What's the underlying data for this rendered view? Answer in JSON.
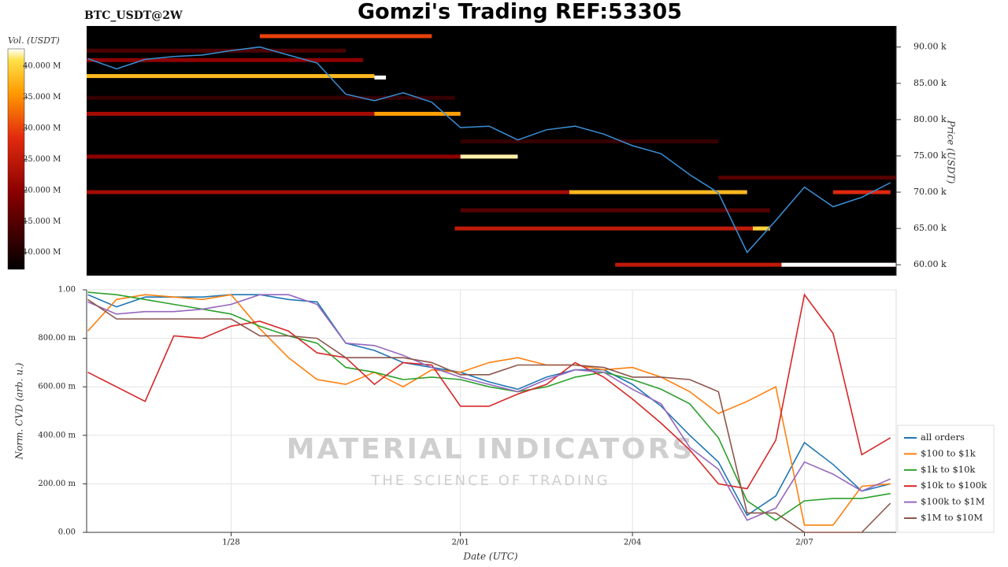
{
  "title": "Gomzi's Trading REF:53305",
  "chart_data": [
    {
      "type": "heatmap",
      "subtitle": "BTC_USDT@2W",
      "colorbar_label": "Vol. (USDT)",
      "clim": [
        7300000,
        42800000
      ],
      "cticks": [
        {
          "value": 10000000,
          "label": "10.000 M"
        },
        {
          "value": 15000000,
          "label": "15.000 M"
        },
        {
          "value": 20000000,
          "label": "20.000 M"
        },
        {
          "value": 25000000,
          "label": "25.000 M"
        },
        {
          "value": 30000000,
          "label": "30.000 M"
        },
        {
          "value": 35000000,
          "label": "35.000 M"
        },
        {
          "value": 40000000,
          "label": "40.000 M"
        }
      ],
      "ylabel": "Price (USDT)",
      "ylim": [
        58500,
        92900
      ],
      "yticks": [
        {
          "value": 60000,
          "label": "60.00 k"
        },
        {
          "value": 65000,
          "label": "65.00 k"
        },
        {
          "value": 70000,
          "label": "70.00 k"
        },
        {
          "value": 75000,
          "label": "75.00 k"
        },
        {
          "value": 80000,
          "label": "80.00 k"
        },
        {
          "value": 85000,
          "label": "85.00 k"
        },
        {
          "value": 90000,
          "label": "90.00 k"
        }
      ],
      "xlim": [
        25.48,
        39.6
      ],
      "bands": {
        "price": [
          89500,
          83000,
          77000,
          67500,
          72000,
          88200,
          86000,
          80800,
          80800,
          85800,
          91500,
          74900,
          74900,
          70000,
          70000,
          65000,
          65000,
          60000,
          60000,
          70000
        ],
        "start": [
          25.48,
          25.48,
          32,
          32,
          36.5,
          25.48,
          25.48,
          25.48,
          30.5,
          30.5,
          28.5,
          25.48,
          32,
          25.48,
          33.9,
          31.9,
          37.1,
          34.7,
          37.6,
          38.5
        ],
        "end": [
          30,
          31.9,
          36.5,
          37.4,
          39.6,
          30.3,
          30.5,
          32,
          32,
          30.7,
          31.5,
          33,
          33,
          37,
          37,
          37.4,
          37.4,
          39.6,
          39.6,
          39.5
        ],
        "volume": [
          14000000,
          12000000,
          12000000,
          15000000,
          15000000,
          20000000,
          38000000,
          22000000,
          36000000,
          48000000,
          30000000,
          20000000,
          42000000,
          22000000,
          38000000,
          25000000,
          40000000,
          25000000,
          50000000,
          28000000
        ]
      },
      "x": [
        25.5,
        26,
        26.5,
        27,
        27.5,
        28,
        28.5,
        29,
        29.5,
        30,
        30.5,
        31,
        31.5,
        32,
        32.5,
        33,
        33.5,
        34,
        34.5,
        35,
        35.5,
        36,
        36.5,
        37,
        37.5,
        38,
        38.5,
        39,
        39.5
      ],
      "series": [
        {
          "color": "#3a8fd6",
          "values": [
            88400,
            87000,
            88300,
            88700,
            88900,
            89500,
            90000,
            88900,
            87800,
            83500,
            82600,
            83700,
            82400,
            78900,
            79100,
            77200,
            78600,
            79100,
            78000,
            76400,
            75300,
            72400,
            69900,
            61700,
            66100,
            70700,
            68000,
            69300,
            71300
          ]
        }
      ]
    },
    {
      "type": "line",
      "ylabel": "Norm. CVD (arb. u.)",
      "xlabel": "Date (UTC)",
      "watermark": [
        "MATERIAL INDICATORS",
        "THE SCIENCE OF TRADING"
      ],
      "grid": true,
      "legend": "right",
      "ylim": [
        0,
        1
      ],
      "yticks": [
        {
          "value": 0,
          "label": "0.00"
        },
        {
          "value": 0.2,
          "label": "200.00 m"
        },
        {
          "value": 0.4,
          "label": "400.00 m"
        },
        {
          "value": 0.6,
          "label": "600.00 m"
        },
        {
          "value": 0.8,
          "label": "800.00 m"
        },
        {
          "value": 1,
          "label": "1.00"
        }
      ],
      "xlim": [
        25.48,
        39.6
      ],
      "xticks": [
        {
          "value": 28,
          "label": "1/28"
        },
        {
          "value": 32,
          "label": "2/01"
        },
        {
          "value": 35,
          "label": "2/04"
        },
        {
          "value": 38,
          "label": "2/07"
        }
      ],
      "x": [
        25.5,
        26,
        26.5,
        27,
        27.5,
        28,
        28.5,
        29,
        29.5,
        30,
        30.5,
        31,
        31.5,
        32,
        32.5,
        33,
        33.5,
        34,
        34.5,
        35,
        35.5,
        36,
        36.5,
        37,
        37.5,
        38,
        38.5,
        39,
        39.5
      ],
      "series": [
        {
          "name": "all orders",
          "color": "#1f77b4",
          "values": [
            0.98,
            0.93,
            0.97,
            0.97,
            0.97,
            0.98,
            0.98,
            0.96,
            0.95,
            0.78,
            0.75,
            0.7,
            0.68,
            0.66,
            0.62,
            0.59,
            0.64,
            0.67,
            0.67,
            0.61,
            0.52,
            0.4,
            0.29,
            0.07,
            0.15,
            0.37,
            0.28,
            0.17,
            0.2
          ]
        },
        {
          "name": "$100 to $1k",
          "color": "#ff7f0e",
          "values": [
            0.83,
            0.96,
            0.98,
            0.97,
            0.96,
            0.98,
            0.84,
            0.72,
            0.63,
            0.61,
            0.66,
            0.6,
            0.67,
            0.66,
            0.7,
            0.72,
            0.69,
            0.69,
            0.67,
            0.68,
            0.64,
            0.58,
            0.49,
            0.54,
            0.6,
            0.03,
            0.03,
            0.19,
            0.2
          ]
        },
        {
          "name": "$1k to $10k",
          "color": "#2ca02c",
          "values": [
            0.99,
            0.98,
            0.96,
            0.94,
            0.92,
            0.9,
            0.85,
            0.81,
            0.78,
            0.68,
            0.66,
            0.63,
            0.64,
            0.63,
            0.6,
            0.58,
            0.6,
            0.64,
            0.66,
            0.63,
            0.59,
            0.53,
            0.39,
            0.13,
            0.05,
            0.13,
            0.14,
            0.14,
            0.16
          ]
        },
        {
          "name": "$10k to $100k",
          "color": "#d62728",
          "values": [
            0.66,
            0.6,
            0.54,
            0.81,
            0.8,
            0.85,
            0.87,
            0.83,
            0.74,
            0.72,
            0.61,
            0.7,
            0.69,
            0.52,
            0.52,
            0.57,
            0.61,
            0.7,
            0.64,
            0.55,
            0.45,
            0.34,
            0.2,
            0.18,
            0.38,
            0.98,
            0.82,
            0.32,
            0.39
          ]
        },
        {
          "name": "$100k to $1M",
          "color": "#9467bd",
          "values": [
            0.95,
            0.9,
            0.91,
            0.91,
            0.92,
            0.94,
            0.98,
            0.98,
            0.94,
            0.78,
            0.77,
            0.73,
            0.68,
            0.64,
            0.61,
            0.58,
            0.63,
            0.67,
            0.66,
            0.59,
            0.53,
            0.35,
            0.26,
            0.05,
            0.1,
            0.29,
            0.24,
            0.17,
            0.22
          ]
        },
        {
          "name": "$1M to $10M",
          "color": "#8c564b",
          "values": [
            0.96,
            0.88,
            0.88,
            0.88,
            0.88,
            0.88,
            0.81,
            0.81,
            0.8,
            0.72,
            0.72,
            0.72,
            0.7,
            0.65,
            0.65,
            0.69,
            0.69,
            0.69,
            0.68,
            0.64,
            0.64,
            0.63,
            0.58,
            0.08,
            0.08,
            0,
            0,
            0,
            0.12
          ]
        }
      ]
    }
  ]
}
